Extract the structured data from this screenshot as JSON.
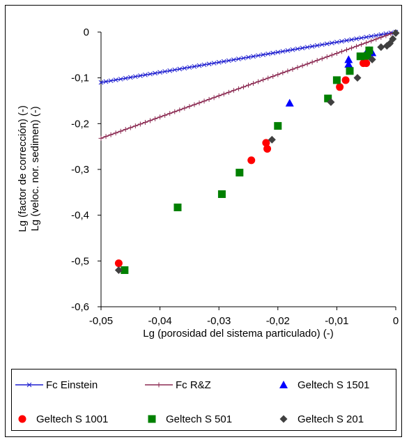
{
  "chart_data": {
    "type": "scatter",
    "xlabel": "Lg (porosidad del sistema particulado) (-)",
    "ylabel_lines": [
      "Lg (factor de corrección) (-)",
      "Lg (veloc. nor. sedimen) (-)"
    ],
    "xlim": [
      -0.05,
      0
    ],
    "ylim": [
      -0.6,
      0
    ],
    "xticks": [
      -0.05,
      -0.04,
      -0.03,
      -0.02,
      -0.01,
      0
    ],
    "yticks": [
      0,
      -0.1,
      -0.2,
      -0.3,
      -0.4,
      -0.5,
      -0.6
    ],
    "xtick_labels": [
      "-0,05",
      "-0,04",
      "-0,03",
      "-0,02",
      "-0,01",
      "0"
    ],
    "ytick_labels": [
      "0",
      "-0,1",
      "-0,2",
      "-0,3",
      "-0,4",
      "-0,5",
      "-0,6"
    ],
    "grid": false,
    "legend_position": "bottom",
    "series": [
      {
        "name": "Fc Einstein",
        "kind": "line",
        "marker": "x",
        "color": "#1f1fd0",
        "x": [
          -0.05,
          0
        ],
        "y": [
          -0.11,
          0
        ]
      },
      {
        "name": "Fc R&Z",
        "kind": "line",
        "marker": "plus",
        "color": "#8b2a52",
        "x": [
          -0.05,
          0
        ],
        "y": [
          -0.232,
          0
        ]
      },
      {
        "name": "Geltech S 1501",
        "kind": "scatter",
        "marker": "triangle",
        "color": "#0000ff",
        "x": [
          -0.018,
          -0.008,
          -0.008,
          -0.005,
          -0.0045,
          -0.004
        ],
        "y": [
          -0.155,
          -0.06,
          -0.07,
          -0.045,
          -0.04,
          -0.045
        ]
      },
      {
        "name": "Geltech S 1001",
        "kind": "scatter",
        "marker": "circle",
        "color": "#ff0000",
        "x": [
          -0.047,
          -0.0245,
          -0.022,
          -0.0218,
          -0.0095,
          -0.0085,
          -0.0055,
          -0.005
        ],
        "y": [
          -0.505,
          -0.28,
          -0.242,
          -0.255,
          -0.12,
          -0.105,
          -0.068,
          -0.068
        ]
      },
      {
        "name": "Geltech S 501",
        "kind": "scatter",
        "marker": "square",
        "color": "#008000",
        "x": [
          -0.046,
          -0.037,
          -0.0295,
          -0.0265,
          -0.02,
          -0.0115,
          -0.01,
          -0.0078,
          -0.006,
          -0.0048,
          -0.0045
        ],
        "y": [
          -0.52,
          -0.383,
          -0.354,
          -0.307,
          -0.205,
          -0.145,
          -0.105,
          -0.085,
          -0.053,
          -0.052,
          -0.04
        ]
      },
      {
        "name": "Geltech S 201",
        "kind": "scatter",
        "marker": "diamond",
        "color": "#404040",
        "x": [
          -0.047,
          -0.021,
          -0.011,
          -0.0065,
          -0.004,
          -0.0025,
          -0.0015,
          -0.001,
          -0.0005,
          0
        ],
        "y": [
          -0.52,
          -0.235,
          -0.153,
          -0.1,
          -0.06,
          -0.033,
          -0.03,
          -0.025,
          -0.015,
          -0.002
        ]
      }
    ]
  }
}
